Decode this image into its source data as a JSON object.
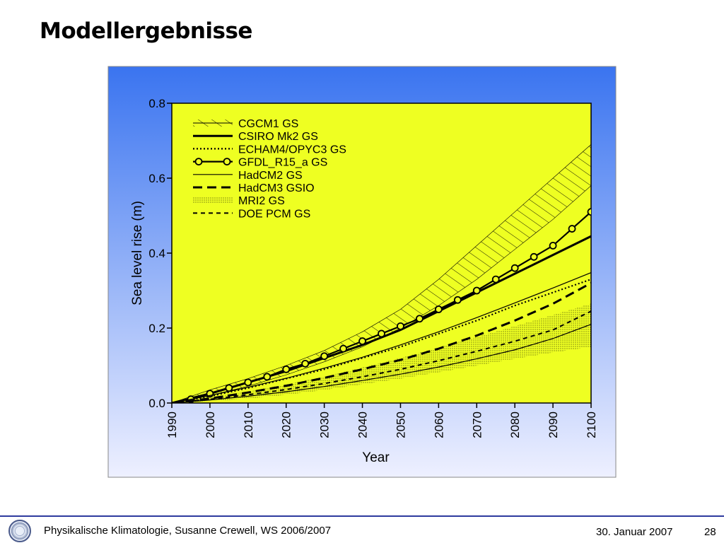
{
  "slide": {
    "title": "Modellergebnisse"
  },
  "footer": {
    "course": "Physikalische Klimatologie, Susanne Crewell,  WS 2006/2007",
    "date": "30. Januar 2007",
    "page": "28",
    "logo_icon": "university-seal-icon"
  },
  "chart_data": {
    "type": "line",
    "title": "",
    "xlabel": "Year",
    "ylabel": "Sea level rise (m)",
    "xlim": [
      1990,
      2100
    ],
    "ylim": [
      0,
      0.8
    ],
    "xticks": [
      1990,
      2000,
      2010,
      2020,
      2030,
      2040,
      2050,
      2060,
      2070,
      2080,
      2090,
      2100
    ],
    "yticks": [
      "0.0",
      "0.2",
      "0.4",
      "0.6",
      "0.8"
    ],
    "legend_position": "top-left",
    "plot_background": "#eeff22",
    "frame_gradient": [
      "#3a74f0",
      "#eef0ff"
    ],
    "series": [
      {
        "name": "CGCM1 GS",
        "style": "hatched-band",
        "x": [
          1990,
          2000,
          2010,
          2020,
          2030,
          2040,
          2050,
          2060,
          2070,
          2080,
          2090,
          2100
        ],
        "low": [
          0,
          0.02,
          0.045,
          0.075,
          0.11,
          0.15,
          0.2,
          0.26,
          0.33,
          0.41,
          0.49,
          0.58
        ],
        "high": [
          0,
          0.035,
          0.065,
          0.1,
          0.14,
          0.19,
          0.25,
          0.33,
          0.42,
          0.51,
          0.6,
          0.69
        ]
      },
      {
        "name": "CSIRO Mk2 GS",
        "style": "thick-solid",
        "x": [
          1990,
          2000,
          2010,
          2020,
          2030,
          2040,
          2050,
          2060,
          2070,
          2080,
          2090,
          2100
        ],
        "values": [
          0,
          0.025,
          0.055,
          0.085,
          0.12,
          0.155,
          0.195,
          0.245,
          0.295,
          0.345,
          0.395,
          0.445
        ]
      },
      {
        "name": "ECHAM4/OPYC3 GS",
        "style": "dotted",
        "x": [
          1990,
          2000,
          2010,
          2020,
          2030,
          2040,
          2050,
          2060,
          2070,
          2080,
          2090,
          2100
        ],
        "values": [
          0,
          0.018,
          0.04,
          0.065,
          0.09,
          0.12,
          0.15,
          0.185,
          0.22,
          0.26,
          0.295,
          0.33
        ]
      },
      {
        "name": "GFDL_R15_a GS",
        "style": "solid-circles",
        "x": [
          1995,
          2000,
          2005,
          2010,
          2015,
          2020,
          2025,
          2030,
          2035,
          2040,
          2045,
          2050,
          2055,
          2060,
          2065,
          2070,
          2075,
          2080,
          2085,
          2090,
          2095,
          2100
        ],
        "values": [
          0.01,
          0.025,
          0.04,
          0.055,
          0.07,
          0.09,
          0.105,
          0.125,
          0.145,
          0.165,
          0.185,
          0.205,
          0.225,
          0.25,
          0.275,
          0.3,
          0.33,
          0.36,
          0.39,
          0.42,
          0.465,
          0.51
        ]
      },
      {
        "name": "HadCM2 GS",
        "style": "thin-solid",
        "x": [
          1990,
          2000,
          2010,
          2020,
          2030,
          2040,
          2050,
          2060,
          2070,
          2080,
          2090,
          2100
        ],
        "values": [
          0,
          0.02,
          0.042,
          0.066,
          0.093,
          0.122,
          0.155,
          0.19,
          0.228,
          0.267,
          0.307,
          0.348
        ]
      },
      {
        "name": "HadCM3 GSIO",
        "style": "long-dash",
        "x": [
          1990,
          2000,
          2010,
          2020,
          2030,
          2040,
          2050,
          2060,
          2070,
          2080,
          2090,
          2100
        ],
        "values": [
          0,
          0.012,
          0.028,
          0.046,
          0.067,
          0.09,
          0.115,
          0.145,
          0.18,
          0.22,
          0.265,
          0.32
        ]
      },
      {
        "name": "MRI2 GS",
        "style": "stippled-band",
        "x": [
          1990,
          2000,
          2010,
          2020,
          2030,
          2040,
          2050,
          2060,
          2070,
          2080,
          2090,
          2100
        ],
        "low": [
          0,
          0.005,
          0.012,
          0.022,
          0.035,
          0.05,
          0.065,
          0.082,
          0.1,
          0.118,
          0.135,
          0.15
        ],
        "high": [
          0,
          0.015,
          0.03,
          0.05,
          0.07,
          0.095,
          0.12,
          0.148,
          0.176,
          0.205,
          0.235,
          0.265
        ]
      },
      {
        "name": "DOE PCM GS",
        "style": "short-dash",
        "x": [
          1990,
          2000,
          2010,
          2020,
          2030,
          2040,
          2050,
          2060,
          2070,
          2080,
          2090,
          2100
        ],
        "values": [
          0,
          0.01,
          0.022,
          0.036,
          0.052,
          0.07,
          0.09,
          0.113,
          0.138,
          0.165,
          0.195,
          0.245
        ]
      },
      {
        "name": "",
        "style": "thin-solid",
        "x": [
          1990,
          2000,
          2010,
          2020,
          2030,
          2040,
          2050,
          2060,
          2070,
          2080,
          2090,
          2100
        ],
        "values": [
          0,
          0.008,
          0.018,
          0.03,
          0.044,
          0.06,
          0.077,
          0.096,
          0.118,
          0.142,
          0.172,
          0.21
        ]
      }
    ]
  }
}
